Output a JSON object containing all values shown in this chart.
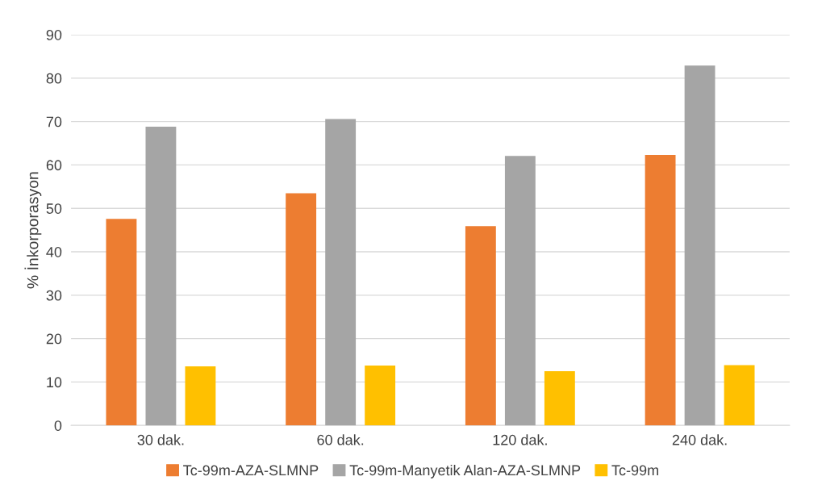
{
  "chart_data": {
    "type": "bar",
    "ylabel": "% İnkorporasyon",
    "categories": [
      "30 dak.",
      "60 dak.",
      "120 dak.",
      "240 dak."
    ],
    "series": [
      {
        "name": "Tc-99m-AZA-SLMNP",
        "color": "#ed7d31",
        "values": [
          47.6,
          53.5,
          45.9,
          62.3
        ]
      },
      {
        "name": "Tc-99m-Manyetik Alan-AZA-SLMNP",
        "color": "#a5a5a5",
        "values": [
          68.8,
          70.6,
          62.1,
          82.9
        ]
      },
      {
        "name": "Tc-99m",
        "color": "#ffc000",
        "values": [
          13.6,
          13.8,
          12.5,
          13.9
        ]
      }
    ],
    "ylim": [
      0,
      90
    ],
    "yticks": [
      0,
      10,
      20,
      30,
      40,
      50,
      60,
      70,
      80,
      90
    ],
    "grid": "y",
    "legend": "bottom"
  }
}
